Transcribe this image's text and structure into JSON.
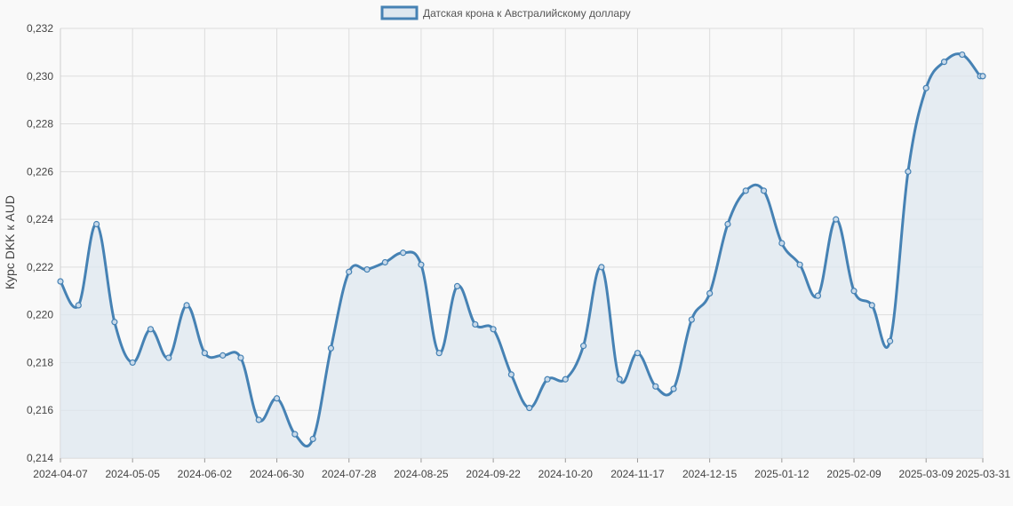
{
  "chart_data": {
    "type": "line",
    "title": "",
    "xlabel": "",
    "ylabel": "Курс DKK к AUD",
    "legend": {
      "position": "top-center",
      "label": "Датская крона к Австралийскому доллару"
    },
    "ylim": [
      0.214,
      0.232
    ],
    "yticks": [
      "0,214",
      "0,216",
      "0,218",
      "0,220",
      "0,222",
      "0,224",
      "0,226",
      "0,228",
      "0,230",
      "0,232"
    ],
    "xtick_labels": [
      "2024-04-07",
      "2024-05-05",
      "2024-06-02",
      "2024-06-30",
      "2024-07-28",
      "2024-08-25",
      "2024-09-22",
      "2024-10-20",
      "2024-11-17",
      "2024-12-15",
      "2025-01-12",
      "2025-02-09",
      "2025-03-09",
      "2025-03-31"
    ],
    "grid": true,
    "fill": true,
    "colors": {
      "line": "#4682b4",
      "fill": "#dde7ef",
      "grid": "#dddddd"
    },
    "series": [
      {
        "name": "Датская крона к Австралийскому доллару",
        "x": [
          "2024-04-07",
          "2024-04-14",
          "2024-04-21",
          "2024-04-28",
          "2024-05-05",
          "2024-05-12",
          "2024-05-19",
          "2024-05-26",
          "2024-06-02",
          "2024-06-09",
          "2024-06-16",
          "2024-06-23",
          "2024-06-30",
          "2024-07-07",
          "2024-07-14",
          "2024-07-21",
          "2024-07-28",
          "2024-08-04",
          "2024-08-11",
          "2024-08-18",
          "2024-08-25",
          "2024-09-01",
          "2024-09-08",
          "2024-09-15",
          "2024-09-22",
          "2024-09-29",
          "2024-10-06",
          "2024-10-13",
          "2024-10-20",
          "2024-10-27",
          "2024-11-03",
          "2024-11-10",
          "2024-11-17",
          "2024-11-24",
          "2024-12-01",
          "2024-12-08",
          "2024-12-15",
          "2024-12-22",
          "2024-12-29",
          "2025-01-05",
          "2025-01-12",
          "2025-01-19",
          "2025-01-26",
          "2025-02-02",
          "2025-02-09",
          "2025-02-16",
          "2025-02-23",
          "2025-03-02",
          "2025-03-09",
          "2025-03-16",
          "2025-03-23",
          "2025-03-30",
          "2025-03-31"
        ],
        "values": [
          0.2214,
          0.2204,
          0.2238,
          0.2197,
          0.218,
          0.2194,
          0.2182,
          0.2204,
          0.2184,
          0.2183,
          0.2182,
          0.2156,
          0.2165,
          0.215,
          0.2148,
          0.2186,
          0.2218,
          0.2219,
          0.2222,
          0.2226,
          0.2221,
          0.2184,
          0.2212,
          0.2196,
          0.2194,
          0.2175,
          0.2161,
          0.2173,
          0.2173,
          0.2187,
          0.222,
          0.2173,
          0.2184,
          0.217,
          0.2169,
          0.2198,
          0.2209,
          0.2238,
          0.2252,
          0.2252,
          0.223,
          0.2221,
          0.2208,
          0.224,
          0.221,
          0.2204,
          0.2189,
          0.226,
          0.2295,
          0.2306,
          0.2309,
          0.23,
          0.23
        ]
      }
    ]
  }
}
